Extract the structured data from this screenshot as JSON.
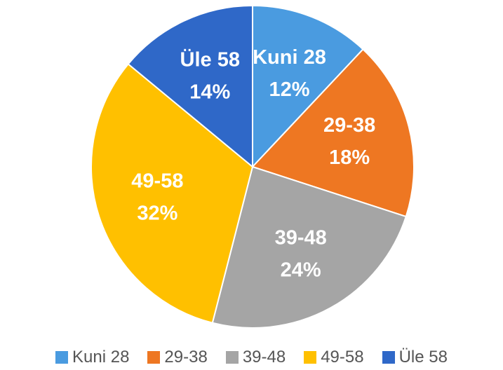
{
  "chart_data": {
    "type": "pie",
    "categories": [
      "Kuni 28",
      "29-38",
      "39-48",
      "49-58",
      "Üle 58"
    ],
    "values": [
      12,
      18,
      24,
      32,
      14
    ],
    "value_labels": [
      "12%",
      "18%",
      "24%",
      "32%",
      "14%"
    ],
    "colors": [
      "#4a9be0",
      "#ee7722",
      "#a5a5a5",
      "#ffc000",
      "#2f68c8"
    ],
    "legend": "bottom"
  }
}
